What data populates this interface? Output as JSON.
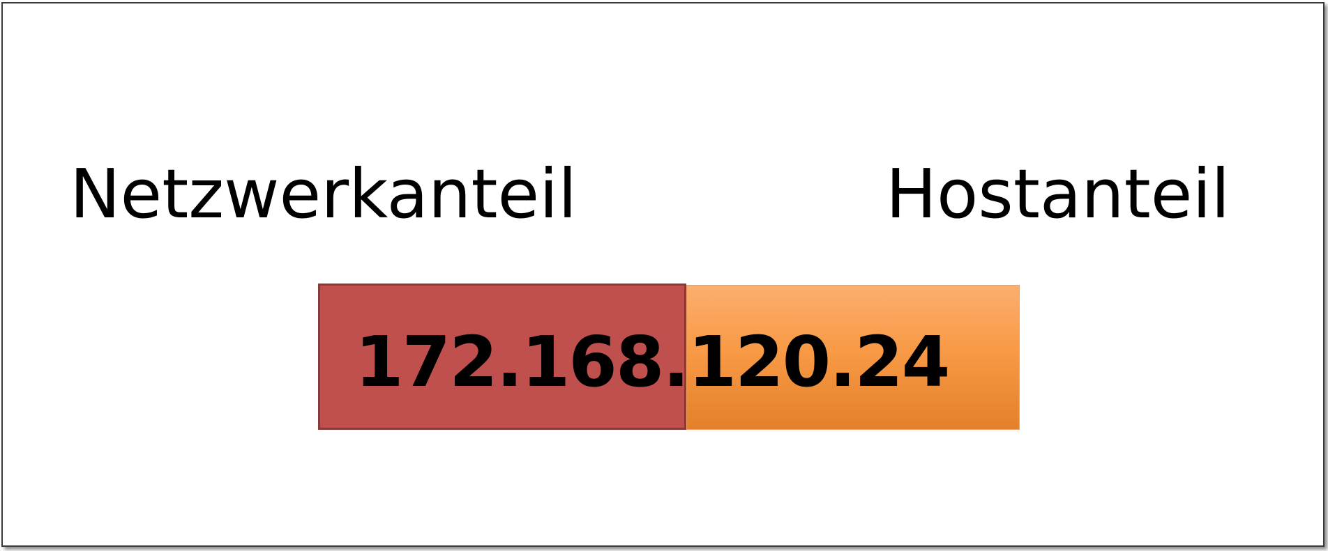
{
  "labels": {
    "network_part": "Netzwerkanteil",
    "host_part": "Hostanteil"
  },
  "ip_address": {
    "network_segment": "172.168.",
    "host_segment": "120.24"
  },
  "colors": {
    "network_fill": "#c0504d",
    "host_fill": "#f79646"
  }
}
